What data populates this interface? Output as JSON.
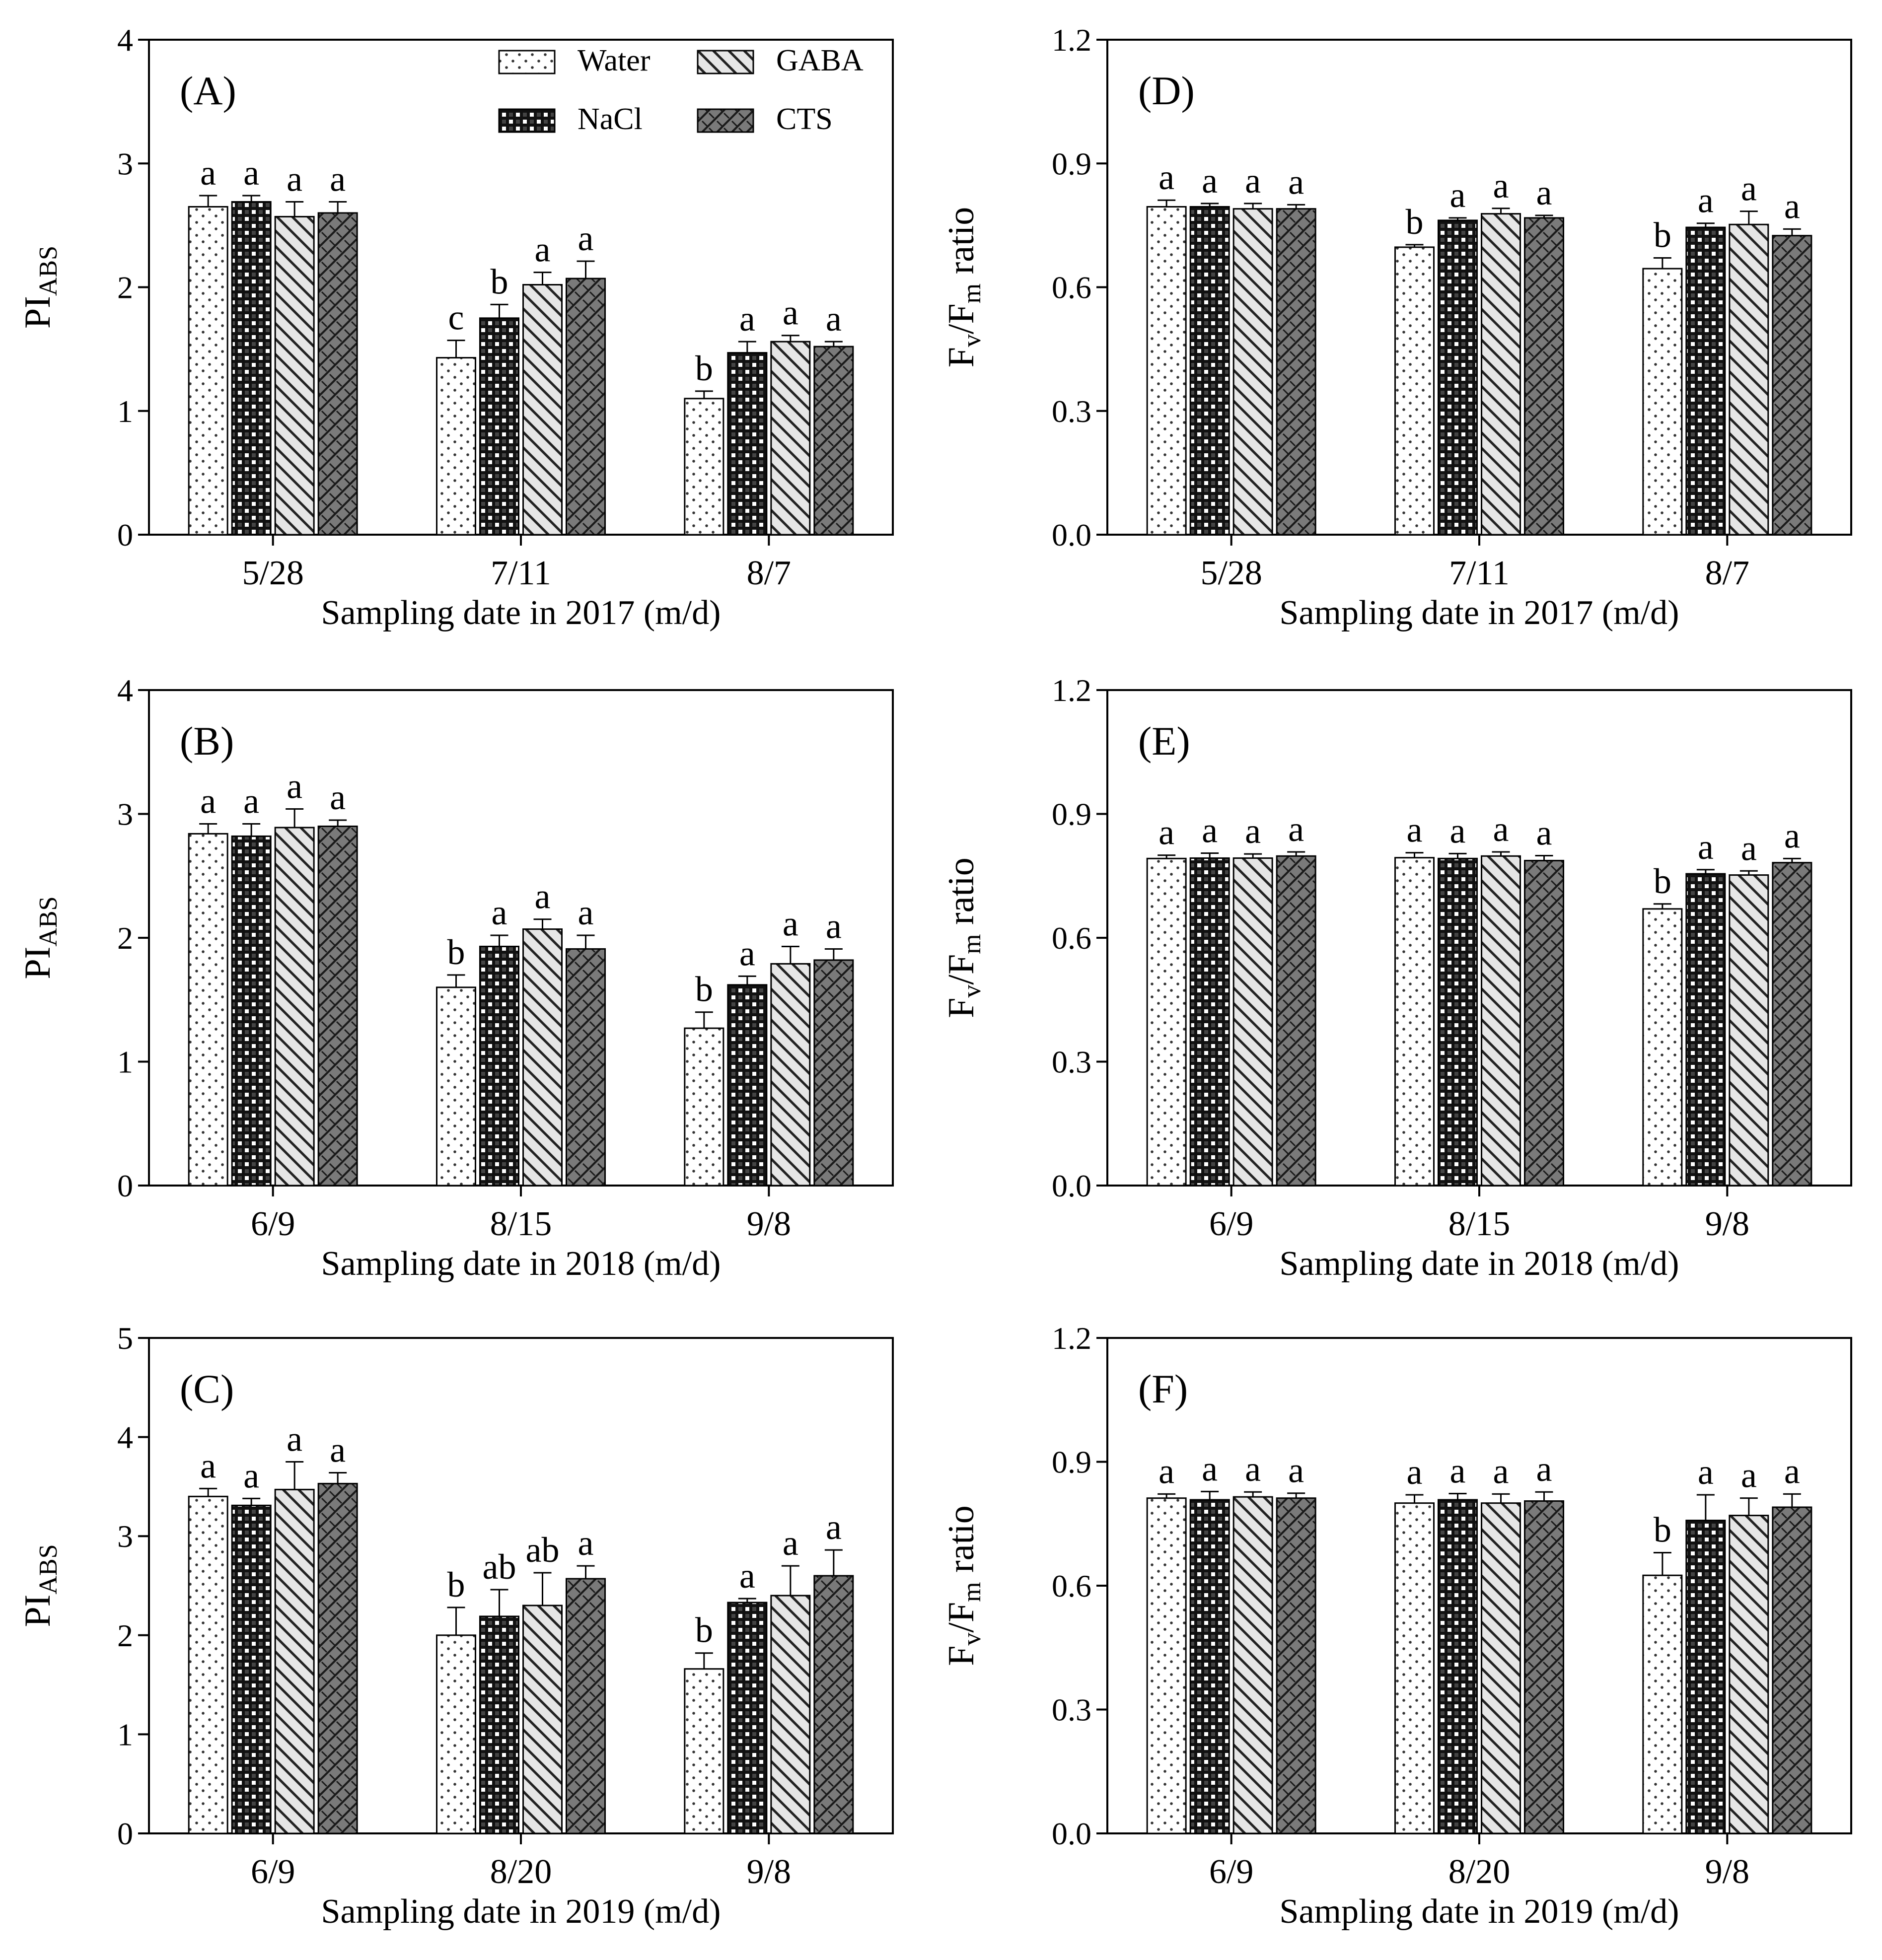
{
  "figure": {
    "legend": {
      "entries": [
        {
          "name": "Water",
          "pattern": "dots"
        },
        {
          "name": "GABA",
          "pattern": "diag-light"
        },
        {
          "name": "NaCl",
          "pattern": "checker"
        },
        {
          "name": "CTS",
          "pattern": "weave-dark"
        }
      ]
    }
  },
  "chart_data": [
    {
      "panel": "(A)",
      "type": "bar",
      "ylabel": "PI",
      "ylabel_sub": "ABS",
      "xlabel": "Sampling date in 2017 (m/d)",
      "ylim": [
        0,
        4
      ],
      "yticks": [
        "0",
        "1",
        "2",
        "3",
        "4"
      ],
      "categories": [
        "5/28",
        "7/11",
        "8/7"
      ],
      "series": [
        {
          "name": "Water",
          "values": [
            2.65,
            1.43,
            1.1
          ],
          "errors": [
            0.09,
            0.14,
            0.06
          ],
          "letters": [
            "a",
            "c",
            "b"
          ]
        },
        {
          "name": "NaCl",
          "values": [
            2.69,
            1.75,
            1.47
          ],
          "errors": [
            0.05,
            0.11,
            0.09
          ],
          "letters": [
            "a",
            "b",
            "a"
          ]
        },
        {
          "name": "GABA",
          "values": [
            2.57,
            2.02,
            1.56
          ],
          "errors": [
            0.12,
            0.1,
            0.05
          ],
          "letters": [
            "a",
            "a",
            "a"
          ]
        },
        {
          "name": "CTS",
          "values": [
            2.6,
            2.07,
            1.52
          ],
          "errors": [
            0.09,
            0.14,
            0.04
          ],
          "letters": [
            "a",
            "a",
            "a"
          ]
        }
      ]
    },
    {
      "panel": "(B)",
      "type": "bar",
      "ylabel": "PI",
      "ylabel_sub": "ABS",
      "xlabel": "Sampling date in 2018 (m/d)",
      "ylim": [
        0,
        4
      ],
      "yticks": [
        "0",
        "1",
        "2",
        "3",
        "4"
      ],
      "categories": [
        "6/9",
        "8/15",
        "9/8"
      ],
      "series": [
        {
          "name": "Water",
          "values": [
            2.84,
            1.6,
            1.27
          ],
          "errors": [
            0.08,
            0.1,
            0.13
          ],
          "letters": [
            "a",
            "b",
            "b"
          ]
        },
        {
          "name": "NaCl",
          "values": [
            2.82,
            1.93,
            1.62
          ],
          "errors": [
            0.1,
            0.09,
            0.07
          ],
          "letters": [
            "a",
            "a",
            "a"
          ]
        },
        {
          "name": "GABA",
          "values": [
            2.89,
            2.07,
            1.79
          ],
          "errors": [
            0.15,
            0.08,
            0.14
          ],
          "letters": [
            "a",
            "a",
            "a"
          ]
        },
        {
          "name": "CTS",
          "values": [
            2.9,
            1.91,
            1.82
          ],
          "errors": [
            0.05,
            0.11,
            0.09
          ],
          "letters": [
            "a",
            "a",
            "a"
          ]
        }
      ]
    },
    {
      "panel": "(C)",
      "type": "bar",
      "ylabel": "PI",
      "ylabel_sub": "ABS",
      "xlabel": "Sampling date in 2019 (m/d)",
      "ylim": [
        0,
        5
      ],
      "yticks": [
        "0",
        "1",
        "2",
        "3",
        "4",
        "5"
      ],
      "categories": [
        "6/9",
        "8/20",
        "9/8"
      ],
      "series": [
        {
          "name": "Water",
          "values": [
            3.4,
            2.0,
            1.66
          ],
          "errors": [
            0.08,
            0.28,
            0.16
          ],
          "letters": [
            "a",
            "b",
            "b"
          ]
        },
        {
          "name": "NaCl",
          "values": [
            3.31,
            2.19,
            2.33
          ],
          "errors": [
            0.07,
            0.27,
            0.04
          ],
          "letters": [
            "a",
            "ab",
            "a"
          ]
        },
        {
          "name": "GABA",
          "values": [
            3.47,
            2.3,
            2.4
          ],
          "errors": [
            0.28,
            0.33,
            0.3
          ],
          "letters": [
            "a",
            "ab",
            "a"
          ]
        },
        {
          "name": "CTS",
          "values": [
            3.53,
            2.57,
            2.6
          ],
          "errors": [
            0.11,
            0.13,
            0.26
          ],
          "letters": [
            "a",
            "a",
            "a"
          ]
        }
      ]
    },
    {
      "panel": "(D)",
      "type": "bar",
      "ylabel": "F",
      "ylabel_parts": [
        "F",
        "v",
        "/F",
        "m",
        " ratio"
      ],
      "xlabel": "Sampling date in 2017 (m/d)",
      "ylim": [
        0,
        1.2
      ],
      "yticks": [
        "0.0",
        "0.3",
        "0.6",
        "0.9",
        "1.2"
      ],
      "categories": [
        "5/28",
        "7/11",
        "8/7"
      ],
      "series": [
        {
          "name": "Water",
          "values": [
            0.795,
            0.697,
            0.645
          ],
          "errors": [
            0.016,
            0.006,
            0.026
          ],
          "letters": [
            "a",
            "b",
            "b"
          ]
        },
        {
          "name": "NaCl",
          "values": [
            0.795,
            0.762,
            0.745
          ],
          "errors": [
            0.008,
            0.006,
            0.01
          ],
          "letters": [
            "a",
            "a",
            "a"
          ]
        },
        {
          "name": "GABA",
          "values": [
            0.79,
            0.778,
            0.752
          ],
          "errors": [
            0.013,
            0.013,
            0.032
          ],
          "letters": [
            "a",
            "a",
            "a"
          ]
        },
        {
          "name": "CTS",
          "values": [
            0.79,
            0.768,
            0.725
          ],
          "errors": [
            0.01,
            0.006,
            0.016
          ],
          "letters": [
            "a",
            "a",
            "a"
          ]
        }
      ]
    },
    {
      "panel": "(E)",
      "type": "bar",
      "ylabel": "F",
      "ylabel_parts": [
        "F",
        "v",
        "/F",
        "m",
        " ratio"
      ],
      "xlabel": "Sampling date in 2018 (m/d)",
      "ylim": [
        0,
        1.2
      ],
      "yticks": [
        "0.0",
        "0.3",
        "0.6",
        "0.9",
        "1.2"
      ],
      "categories": [
        "6/9",
        "8/15",
        "9/8"
      ],
      "series": [
        {
          "name": "Water",
          "values": [
            0.792,
            0.794,
            0.67
          ],
          "errors": [
            0.008,
            0.012,
            0.012
          ],
          "letters": [
            "a",
            "a",
            "b"
          ]
        },
        {
          "name": "NaCl",
          "values": [
            0.793,
            0.792,
            0.755
          ],
          "errors": [
            0.012,
            0.012,
            0.01
          ],
          "letters": [
            "a",
            "a",
            "a"
          ]
        },
        {
          "name": "GABA",
          "values": [
            0.793,
            0.798,
            0.752
          ],
          "errors": [
            0.01,
            0.01,
            0.01
          ],
          "letters": [
            "a",
            "a",
            "a"
          ]
        },
        {
          "name": "CTS",
          "values": [
            0.798,
            0.787,
            0.782
          ],
          "errors": [
            0.01,
            0.012,
            0.01
          ],
          "letters": [
            "a",
            "a",
            "a"
          ]
        }
      ]
    },
    {
      "panel": "(F)",
      "type": "bar",
      "ylabel": "F",
      "ylabel_parts": [
        "F",
        "v",
        "/F",
        "m",
        " ratio"
      ],
      "xlabel": "Sampling date in 2019 (m/d)",
      "ylim": [
        0,
        1.2
      ],
      "yticks": [
        "0.0",
        "0.3",
        "0.6",
        "0.9",
        "1.2"
      ],
      "categories": [
        "6/9",
        "8/20",
        "9/8"
      ],
      "series": [
        {
          "name": "Water",
          "values": [
            0.812,
            0.8,
            0.625
          ],
          "errors": [
            0.01,
            0.02,
            0.055
          ],
          "letters": [
            "a",
            "a",
            "b"
          ]
        },
        {
          "name": "NaCl",
          "values": [
            0.808,
            0.808,
            0.758
          ],
          "errors": [
            0.02,
            0.015,
            0.062
          ],
          "letters": [
            "a",
            "a",
            "a"
          ]
        },
        {
          "name": "GABA",
          "values": [
            0.815,
            0.8,
            0.77
          ],
          "errors": [
            0.012,
            0.022,
            0.042
          ],
          "letters": [
            "a",
            "a",
            "a"
          ]
        },
        {
          "name": "CTS",
          "values": [
            0.812,
            0.805,
            0.79
          ],
          "errors": [
            0.012,
            0.022,
            0.032
          ],
          "letters": [
            "a",
            "a",
            "a"
          ]
        }
      ]
    }
  ]
}
